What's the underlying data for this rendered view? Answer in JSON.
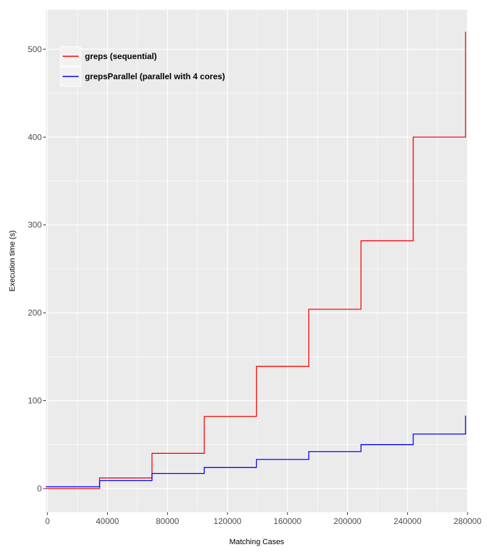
{
  "chart_data": {
    "type": "line",
    "line_shape": "step",
    "title": "",
    "xlabel": "Matching Cases",
    "ylabel": "Execution time (s)",
    "xlim": [
      -1000,
      280000
    ],
    "ylim": [
      -27,
      545
    ],
    "x_ticks": [
      0,
      40000,
      80000,
      120000,
      160000,
      200000,
      240000,
      280000
    ],
    "x_tick_labels": [
      "0",
      "40000",
      "80000",
      "120000",
      "160000",
      "200000",
      "240000",
      "280000"
    ],
    "y_ticks": [
      0,
      100,
      200,
      300,
      400,
      500
    ],
    "y_tick_labels": [
      "0",
      "100",
      "200",
      "300",
      "400",
      "500"
    ],
    "grid": true,
    "legend_position": "top-left",
    "panel_background": "#EBEBEB",
    "grid_color": "#FFFFFF",
    "series": [
      {
        "name": "greps (sequential)",
        "color": "#FF0000",
        "x": [
          -1000,
          34800,
          34800,
          69700,
          69700,
          104500,
          104500,
          139300,
          139300,
          174200,
          174200,
          209000,
          209000,
          243800,
          243800,
          278700,
          278700
        ],
        "y": [
          0,
          0,
          12,
          12,
          40,
          40,
          82,
          82,
          139,
          139,
          204,
          204,
          282,
          282,
          400,
          400,
          520
        ]
      },
      {
        "name": "grepsParallel (parallel with 4 cores)",
        "color": "#0000FF",
        "x": [
          -1000,
          34800,
          34800,
          69700,
          69700,
          104500,
          104500,
          139300,
          139300,
          174200,
          174200,
          209000,
          209000,
          243800,
          243800,
          278700,
          278700
        ],
        "y": [
          2,
          2,
          9,
          9,
          17,
          17,
          24,
          24,
          33,
          33,
          42,
          42,
          50,
          50,
          62,
          62,
          83
        ]
      }
    ]
  }
}
